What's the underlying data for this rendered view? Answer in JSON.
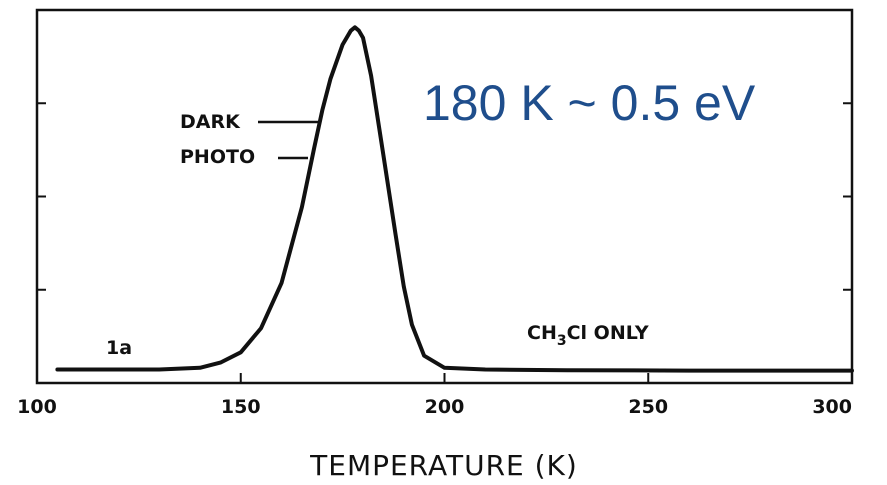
{
  "chart_data": {
    "type": "line",
    "xlabel": "TEMPERATURE (K)",
    "ylabel": "",
    "xlim": [
      100,
      300
    ],
    "ylim": [
      0,
      1.05
    ],
    "x_ticks": [
      "100",
      "150",
      "200",
      "250",
      "300"
    ],
    "grid": false,
    "series": [
      {
        "x": [
          105,
          120,
          130,
          140,
          145,
          150,
          155,
          160,
          165,
          168,
          170,
          172,
          175,
          177,
          178,
          179,
          180,
          182,
          185,
          188,
          190,
          192,
          195,
          200,
          210,
          230,
          260,
          290,
          300
        ],
        "y": [
          0.01,
          0.01,
          0.01,
          0.015,
          0.03,
          0.06,
          0.13,
          0.26,
          0.48,
          0.65,
          0.76,
          0.85,
          0.95,
          0.99,
          1.0,
          0.99,
          0.97,
          0.86,
          0.63,
          0.4,
          0.25,
          0.14,
          0.05,
          0.015,
          0.01,
          0.008,
          0.007,
          0.007,
          0.007
        ]
      }
    ],
    "annotations": {
      "dark": "DARK",
      "photo": "PHOTO",
      "panel": "1a",
      "species_pre": "CH",
      "species_sub": "3",
      "species_post": "Cl ONLY"
    },
    "overlay_text": "180 K ~ 0.5 eV",
    "colors": {
      "overlay": "#1f4e8c",
      "line": "#111111"
    }
  }
}
